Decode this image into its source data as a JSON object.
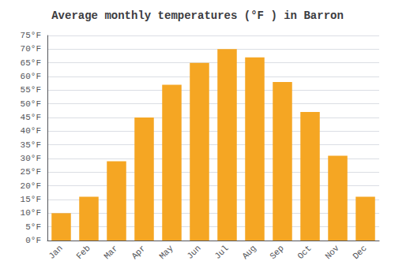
{
  "chart_data": {
    "type": "bar",
    "title": "Average monthly temperatures (°F ) in Barron",
    "categories": [
      "Jan",
      "Feb",
      "Mar",
      "Apr",
      "May",
      "Jun",
      "Jul",
      "Aug",
      "Sep",
      "Oct",
      "Nov",
      "Dec"
    ],
    "values": [
      10,
      16,
      29,
      45,
      57,
      65,
      70,
      67,
      58,
      47,
      31,
      16
    ],
    "color": "#F5A623",
    "ylim": [
      0,
      75
    ],
    "yticks": [
      {
        "value": 0,
        "label": "0°F"
      },
      {
        "value": 5,
        "label": "5°F"
      },
      {
        "value": 10,
        "label": "10°F"
      },
      {
        "value": 15,
        "label": "15°F"
      },
      {
        "value": 20,
        "label": "20°F"
      },
      {
        "value": 25,
        "label": "25°F"
      },
      {
        "value": 30,
        "label": "30°F"
      },
      {
        "value": 35,
        "label": "35°F"
      },
      {
        "value": 40,
        "label": "40°F"
      },
      {
        "value": 45,
        "label": "45°F"
      },
      {
        "value": 50,
        "label": "50°F"
      },
      {
        "value": 55,
        "label": "55°F"
      },
      {
        "value": 60,
        "label": "60°F"
      },
      {
        "value": 65,
        "label": "65°F"
      },
      {
        "value": 70,
        "label": "70°F"
      },
      {
        "value": 75,
        "label": "75°F"
      }
    ],
    "grid": true
  }
}
